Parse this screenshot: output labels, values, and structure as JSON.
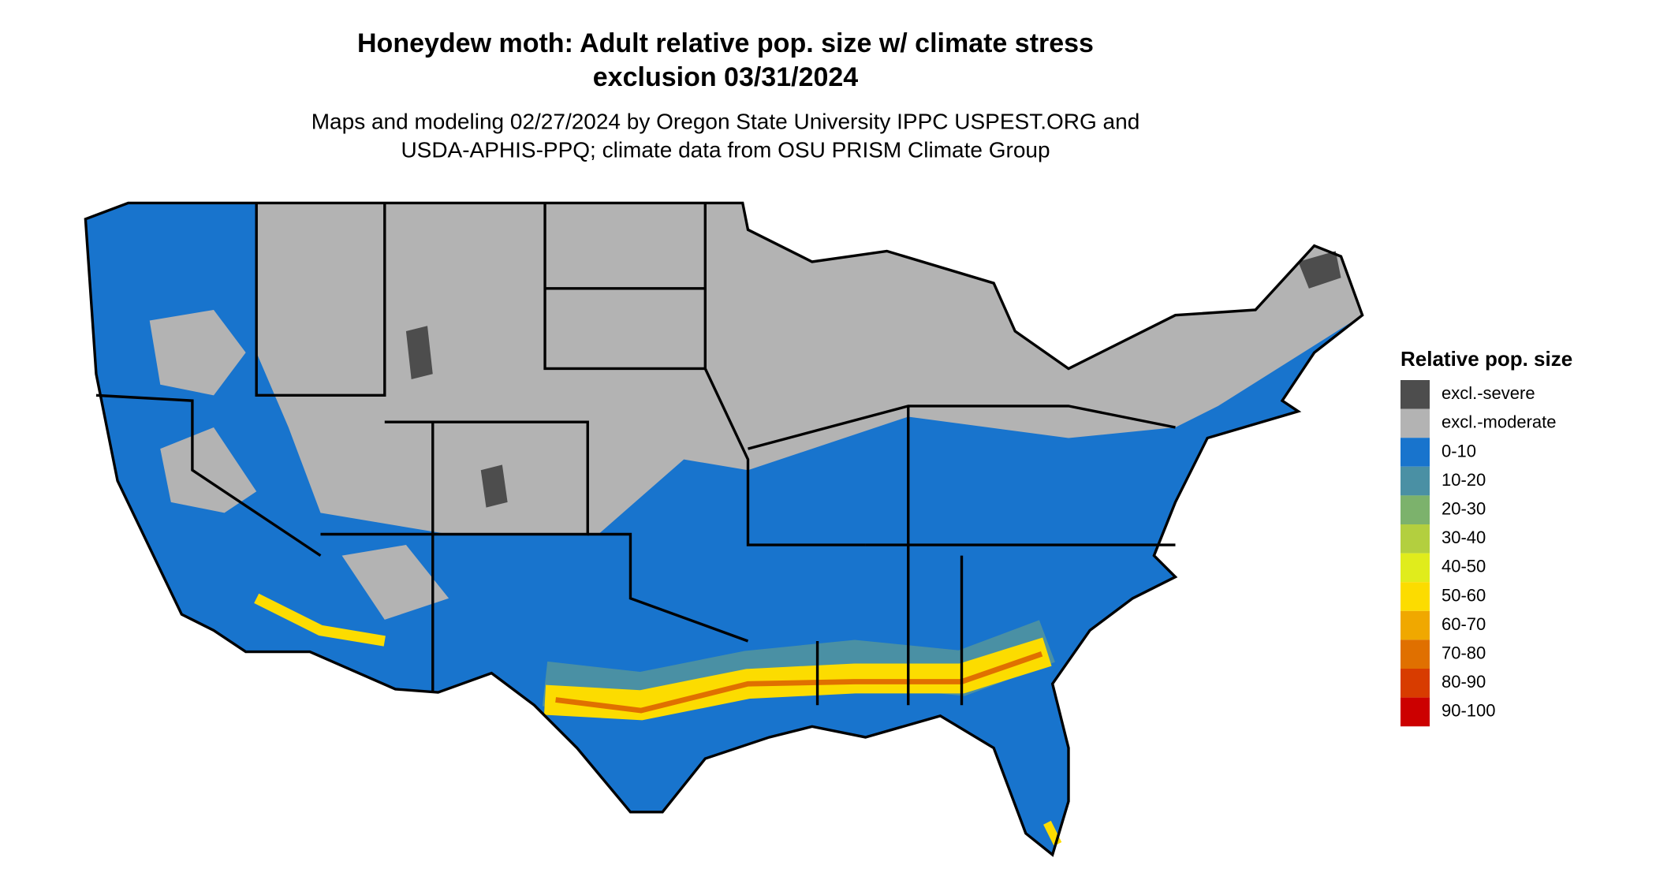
{
  "header": {
    "title_lines": [
      "Honeydew moth: Adult relative pop. size w/ climate stress",
      "exclusion 03/31/2024"
    ],
    "subtitle_lines": [
      "Maps and modeling 02/27/2024 by Oregon State University IPPC USPEST.ORG and",
      "USDA-APHIS-PPQ; climate data from OSU PRISM Climate Group"
    ]
  },
  "legend": {
    "title": "Relative pop. size",
    "items": [
      {
        "label": "excl.-severe",
        "color": "#4d4d4d"
      },
      {
        "label": "excl.-moderate",
        "color": "#b3b3b3"
      },
      {
        "label": "0-10",
        "color": "#1874cd"
      },
      {
        "label": "10-20",
        "color": "#4a90a4"
      },
      {
        "label": "20-30",
        "color": "#7cb26c"
      },
      {
        "label": "30-40",
        "color": "#b3cf3f"
      },
      {
        "label": "40-50",
        "color": "#e0ec1c"
      },
      {
        "label": "50-60",
        "color": "#fcdc00"
      },
      {
        "label": "60-70",
        "color": "#f0a800"
      },
      {
        "label": "70-80",
        "color": "#e07000"
      },
      {
        "label": "80-90",
        "color": "#d83c00"
      },
      {
        "label": "90-100",
        "color": "#cc0000"
      }
    ]
  }
}
